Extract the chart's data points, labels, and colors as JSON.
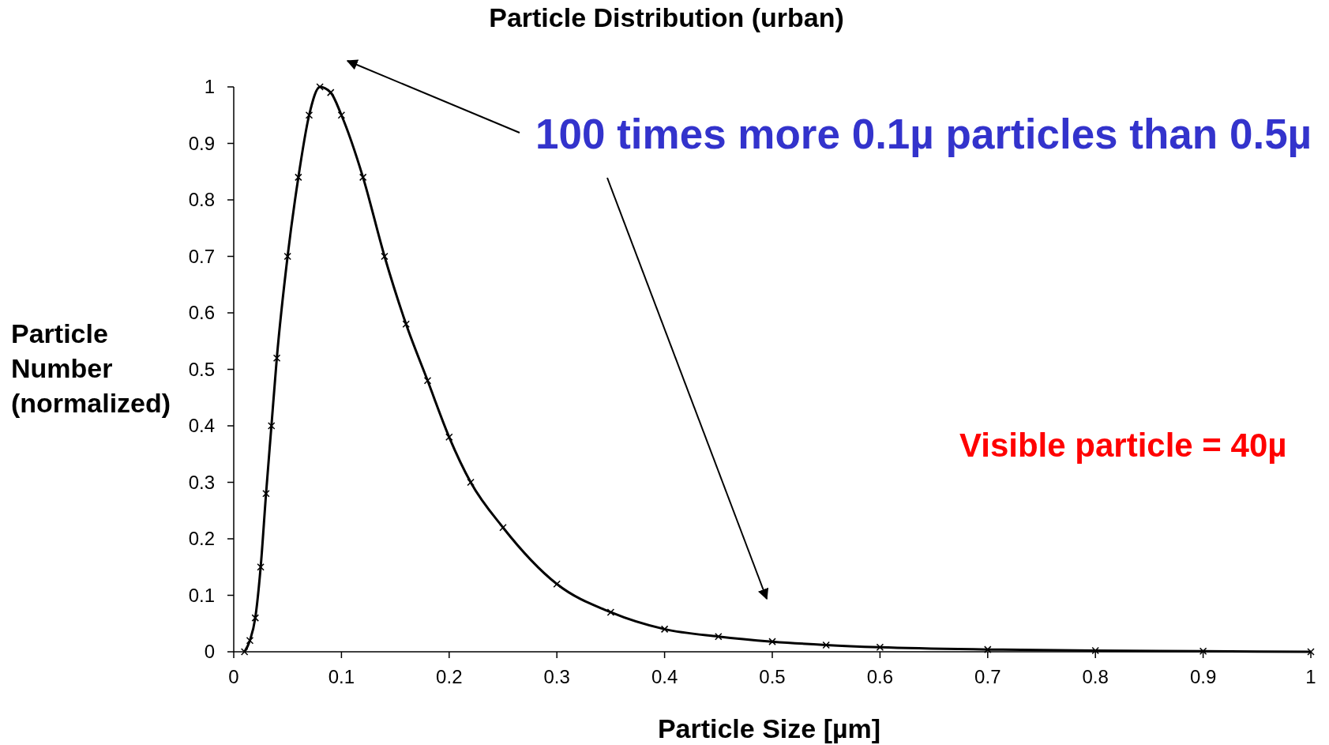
{
  "chart_data": {
    "type": "line",
    "title": "Particle Distribution (urban)",
    "xlabel": "Particle Size [µm]",
    "ylabel": "Particle Number (normalized)",
    "annotations": [
      "100 times more 0.1µ particles than 0.5µ",
      "Visible particle = 40µ"
    ],
    "x": [
      0.01,
      0.015,
      0.02,
      0.025,
      0.03,
      0.035,
      0.04,
      0.05,
      0.06,
      0.07,
      0.08,
      0.09,
      0.1,
      0.12,
      0.14,
      0.16,
      0.18,
      0.2,
      0.22,
      0.25,
      0.3,
      0.35,
      0.4,
      0.45,
      0.5,
      0.55,
      0.6,
      0.7,
      0.8,
      0.9,
      1
    ],
    "series": [
      {
        "color": "#000000",
        "values": [
          0,
          0.02,
          0.06,
          0.15,
          0.28,
          0.4,
          0.52,
          0.7,
          0.84,
          0.95,
          1,
          0.99,
          0.95,
          0.84,
          0.7,
          0.58,
          0.48,
          0.38,
          0.3,
          0.22,
          0.12,
          0.07,
          0.04,
          0.027,
          0.018,
          0.012,
          0.008,
          0.004,
          0.002,
          0.001,
          0
        ]
      }
    ],
    "xlim": [
      0,
      1
    ],
    "xticks": [
      0,
      0.1,
      0.2,
      0.3,
      0.4,
      0.5,
      0.6,
      0.7,
      0.8,
      0.9,
      1
    ],
    "ylim": [
      0,
      1
    ],
    "yticks": [
      0,
      0.1,
      0.2,
      0.3,
      0.4,
      0.5,
      0.6,
      0.7,
      0.8,
      0.9,
      1
    ],
    "marker": "cross"
  }
}
